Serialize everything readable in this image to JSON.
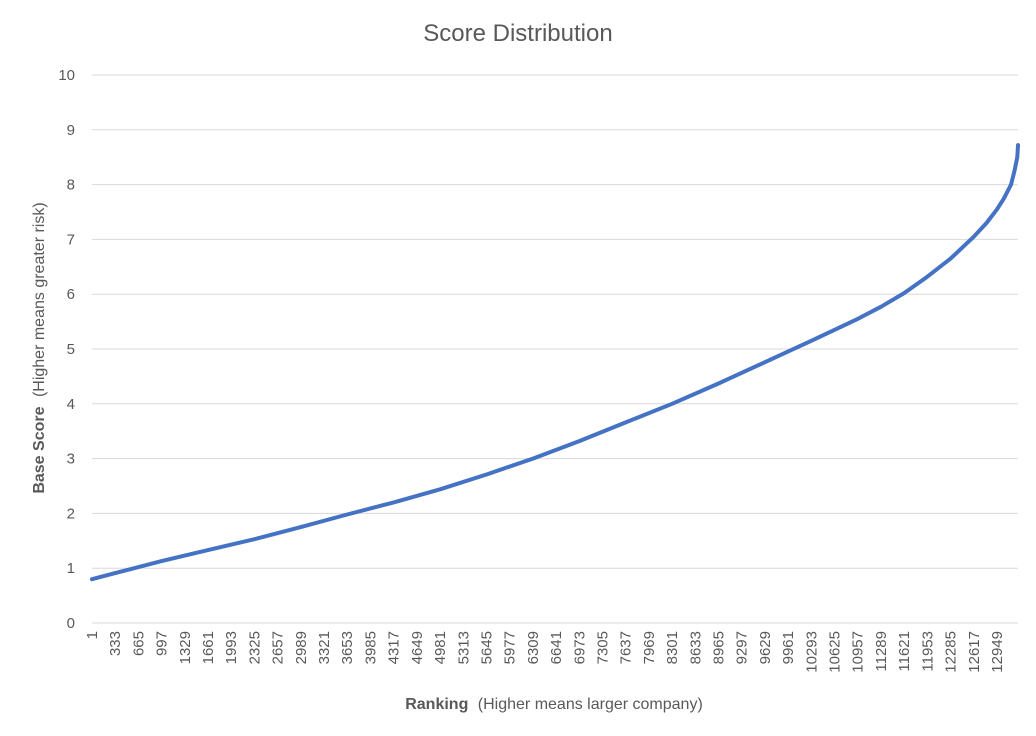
{
  "chart_data": {
    "type": "line",
    "title": "Score Distribution",
    "xlabel_bold": "Ranking",
    "xlabel_rest": "(Higher means larger company)",
    "ylabel_bold": "Base Score",
    "ylabel_rest": "(Higher means greater risk)",
    "ylim": [
      0,
      10
    ],
    "y_ticks": [
      "0",
      "1",
      "2",
      "3",
      "4",
      "5",
      "6",
      "7",
      "8",
      "9",
      "10"
    ],
    "x_tick_labels": [
      "1",
      "333",
      "665",
      "997",
      "1329",
      "1661",
      "1993",
      "2325",
      "2657",
      "2989",
      "3321",
      "3653",
      "3985",
      "4317",
      "4649",
      "4981",
      "5313",
      "5645",
      "5977",
      "6309",
      "6641",
      "6973",
      "7305",
      "7637",
      "7969",
      "8301",
      "8633",
      "8965",
      "9297",
      "9629",
      "9961",
      "10293",
      "10625",
      "10957",
      "11289",
      "11621",
      "11953",
      "12285",
      "12617",
      "12949"
    ],
    "xlim": [
      1,
      13250
    ],
    "grid": true,
    "legend": "none",
    "color": "#4472c4",
    "series": [
      {
        "x": [
          1,
          333,
          997,
          1661,
          2325,
          2989,
          3653,
          4317,
          4981,
          5645,
          6309,
          6973,
          7637,
          8301,
          8965,
          9629,
          10293,
          10957,
          11289,
          11621,
          11953,
          12285,
          12617,
          12800,
          12949,
          13050,
          13150,
          13200,
          13240,
          13250
        ],
        "values": [
          0.8,
          0.91,
          1.13,
          1.33,
          1.53,
          1.75,
          1.98,
          2.2,
          2.44,
          2.71,
          3.0,
          3.32,
          3.66,
          4.0,
          4.37,
          4.76,
          5.15,
          5.55,
          5.77,
          6.02,
          6.32,
          6.65,
          7.05,
          7.3,
          7.55,
          7.75,
          8.0,
          8.25,
          8.5,
          8.72
        ]
      }
    ]
  }
}
